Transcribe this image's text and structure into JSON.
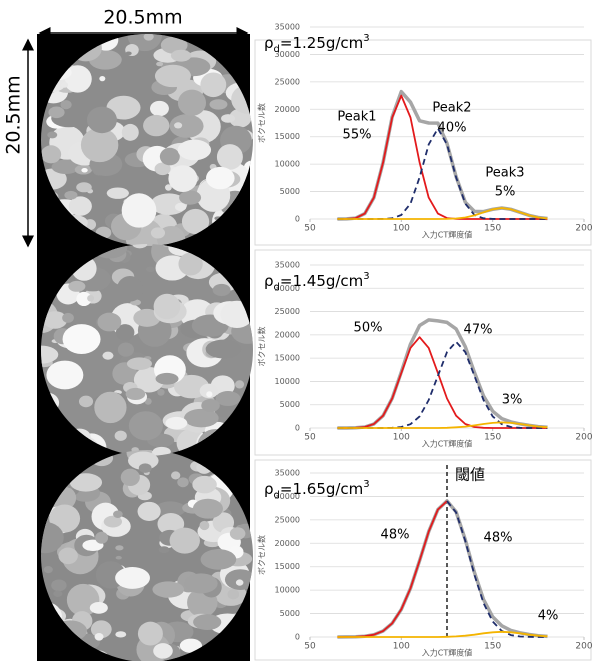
{
  "image_panel": {
    "width_label": "20.5mm",
    "height_label": "20.5mm"
  },
  "chart_data": [
    {
      "type": "line",
      "density_label": [
        "ρ",
        "d",
        "=1.25g/cm",
        "3"
      ],
      "x_label": "入力CT輝度値",
      "y_label": "ボクセル数",
      "x": [
        65,
        70,
        75,
        80,
        85,
        90,
        95,
        100,
        105,
        110,
        115,
        120,
        125,
        130,
        135,
        140,
        145,
        150,
        155,
        160,
        165,
        170,
        175,
        180
      ],
      "xlim": [
        50,
        200
      ],
      "xticks": [
        50,
        100,
        150,
        200
      ],
      "ylim": [
        0,
        35000
      ],
      "yticks": [
        0,
        5000,
        10000,
        15000,
        20000,
        25000,
        30000,
        35000
      ],
      "grid": true,
      "annotations": [
        "Peak1",
        "55%",
        "Peak2",
        "40%",
        "Peak3",
        "5%"
      ],
      "series": [
        {
          "color": "#a6a6a6",
          "values": [
            0,
            20,
            170,
            990,
            3900,
            10315,
            18630,
            23230,
            21300,
            17900,
            17500,
            17490,
            13790,
            7710,
            3070,
            1380,
            1340,
            1775,
            2000,
            1760,
            1210,
            650,
            270,
            90
          ]
        },
        {
          "color": "#e31a1c",
          "values": [
            0,
            20,
            170,
            990,
            3900,
            10300,
            18500,
            22500,
            18500,
            10300,
            3900,
            990,
            170,
            20,
            0,
            0,
            0,
            0,
            0,
            0,
            0,
            0,
            0,
            0
          ]
        },
        {
          "color": "#1f2d6b",
          "dashed": true,
          "values": [
            0,
            0,
            0,
            0,
            0,
            15,
            130,
            730,
            2800,
            7600,
            13600,
            16500,
            13600,
            7600,
            2800,
            730,
            130,
            15,
            0,
            0,
            0,
            0,
            0,
            0
          ]
        },
        {
          "color": "#f4b400",
          "values": [
            0,
            0,
            0,
            0,
            0,
            0,
            0,
            0,
            0,
            0,
            0,
            0,
            20,
            90,
            270,
            650,
            1210,
            1760,
            2000,
            1760,
            1210,
            650,
            270,
            90
          ]
        }
      ]
    },
    {
      "type": "line",
      "density_label": [
        "ρ",
        "d",
        "=1.45g/cm",
        "3"
      ],
      "x_label": "入力CT輝度値",
      "y_label": "ボクセル数",
      "x": [
        65,
        70,
        75,
        80,
        85,
        90,
        95,
        100,
        105,
        110,
        115,
        120,
        125,
        130,
        135,
        140,
        145,
        150,
        155,
        160,
        165,
        170,
        175,
        180
      ],
      "xlim": [
        50,
        200
      ],
      "xticks": [
        50,
        100,
        150,
        200
      ],
      "ylim": [
        0,
        35000
      ],
      "yticks": [
        0,
        5000,
        10000,
        15000,
        20000,
        25000,
        30000,
        35000
      ],
      "grid": true,
      "annotations": [
        "50%",
        "47%",
        "3%"
      ],
      "series": [
        {
          "color": "#a6a6a6",
          "values": [
            0,
            0,
            40,
            220,
            860,
            2640,
            6370,
            12005,
            18010,
            22000,
            23210,
            23000,
            22680,
            21280,
            17460,
            11970,
            6900,
            3600,
            2010,
            1305,
            890,
            550,
            300,
            140
          ]
        },
        {
          "color": "#e31a1c",
          "values": [
            0,
            0,
            40,
            220,
            860,
            2640,
            6330,
            11800,
            17200,
            19500,
            17200,
            11800,
            6330,
            2640,
            860,
            220,
            40,
            0,
            0,
            0,
            0,
            0,
            0,
            0
          ]
        },
        {
          "color": "#1f2d6b",
          "dashed": true,
          "values": [
            0,
            0,
            0,
            0,
            0,
            0,
            40,
            205,
            810,
            2500,
            6010,
            11200,
            16300,
            18500,
            16300,
            11200,
            6010,
            2500,
            810,
            205,
            40,
            0,
            0,
            0
          ]
        },
        {
          "color": "#f4b400",
          "values": [
            0,
            0,
            0,
            0,
            0,
            0,
            0,
            0,
            0,
            0,
            0,
            0,
            50,
            140,
            300,
            550,
            850,
            1100,
            1200,
            1100,
            850,
            550,
            300,
            140
          ]
        }
      ]
    },
    {
      "type": "line",
      "density_label": [
        "ρ",
        "d",
        "=1.65g/cm",
        "3"
      ],
      "x_label": "入力CT輝度値",
      "y_label": "ボクセル数",
      "x": [
        65,
        70,
        75,
        80,
        85,
        90,
        95,
        100,
        105,
        110,
        115,
        120,
        125,
        130,
        135,
        140,
        145,
        150,
        155,
        160,
        165,
        170,
        175,
        180
      ],
      "xlim": [
        50,
        200
      ],
      "xticks": [
        50,
        100,
        150,
        200
      ],
      "ylim": [
        0,
        35000
      ],
      "yticks": [
        0,
        5000,
        10000,
        15000,
        20000,
        25000,
        30000,
        35000
      ],
      "grid": true,
      "annotations": [
        "48%",
        "48%",
        "4%"
      ],
      "threshold": {
        "x": 125,
        "label": "閾値"
      },
      "series": [
        {
          "color": "#a6a6a6",
          "values": [
            0,
            12,
            50,
            165,
            490,
            1280,
            2930,
            5900,
            10400,
            16300,
            22500,
            27200,
            29046,
            26725,
            20775,
            13800,
            8030,
            4300,
            2380,
            1415,
            890,
            526,
            275,
            125
          ]
        },
        {
          "color": "#e31a1c",
          "values": [
            0,
            12,
            50,
            165,
            490,
            1280,
            2930,
            5900,
            10400,
            16300,
            22500,
            27200,
            29000,
            null,
            null,
            null,
            null,
            null,
            null,
            null,
            null,
            null,
            null,
            null
          ]
        },
        {
          "color": "#1f2d6b",
          "dashed": true,
          "values": [
            null,
            null,
            null,
            null,
            null,
            null,
            null,
            null,
            null,
            null,
            null,
            null,
            29000,
            26600,
            20500,
            13300,
            7250,
            3300,
            1280,
            415,
            110,
            26,
            0,
            0
          ]
        },
        {
          "color": "#f4b400",
          "values": [
            0,
            0,
            0,
            0,
            0,
            0,
            0,
            0,
            0,
            0,
            0,
            0,
            46,
            125,
            275,
            500,
            780,
            1000,
            1100,
            1000,
            780,
            500,
            275,
            125
          ]
        }
      ]
    }
  ]
}
